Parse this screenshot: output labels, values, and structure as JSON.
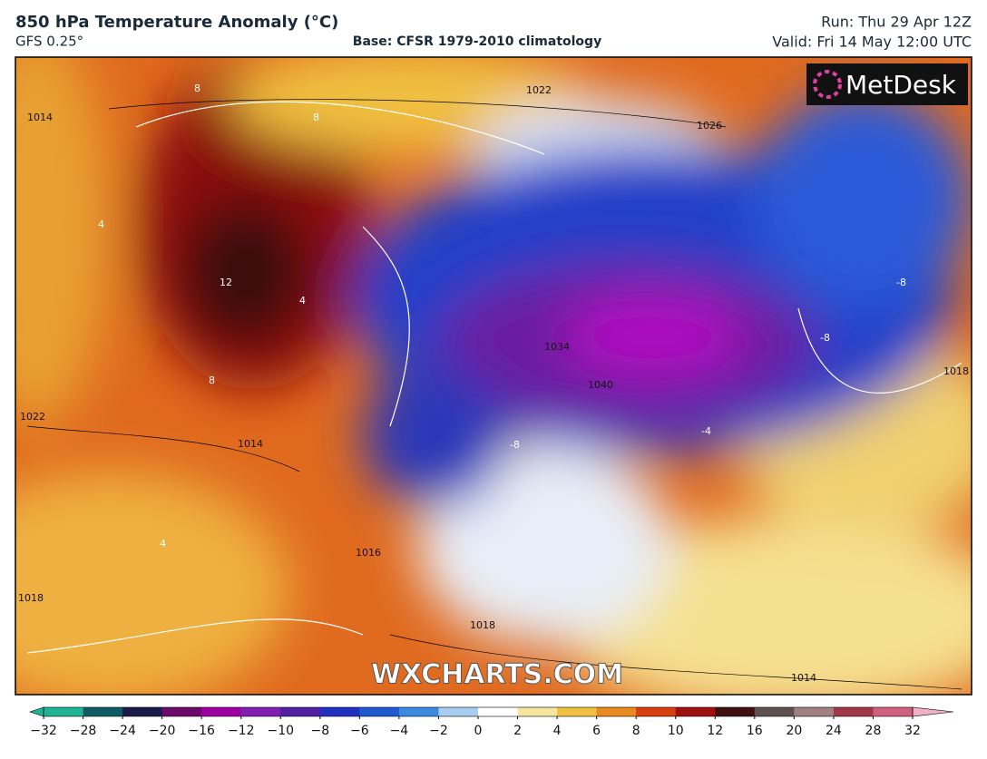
{
  "header": {
    "title": "850 hPa Temperature Anomaly (°C)",
    "model": "GFS 0.25°",
    "base": "Base: CFSR 1979-2010 climatology",
    "run": "Run: Thu 29 Apr 12Z",
    "valid": "Valid: Fri 14 May 12:00 UTC"
  },
  "logo": "MetDesk",
  "watermark": "WXCHARTS.COM",
  "map_labels": [
    "1014",
    "1022",
    "1026",
    "1034",
    "1040",
    "1018",
    "1022",
    "1016",
    "1018",
    "1014",
    "1014",
    "12",
    "8",
    "8",
    "8",
    "4",
    "4",
    "4",
    "-8",
    "-8",
    "-4",
    "-8",
    "1018"
  ],
  "colorbar": {
    "ticks": [
      {
        "value": -32,
        "label": "−32"
      },
      {
        "value": -28,
        "label": "−28"
      },
      {
        "value": -24,
        "label": "−24"
      },
      {
        "value": -20,
        "label": "−20"
      },
      {
        "value": -16,
        "label": "−16"
      },
      {
        "value": -12,
        "label": "−12"
      },
      {
        "value": -10,
        "label": "−10"
      },
      {
        "value": -8,
        "label": "−8"
      },
      {
        "value": -6,
        "label": "−6"
      },
      {
        "value": -4,
        "label": "−4"
      },
      {
        "value": -2,
        "label": "−2"
      },
      0,
      2,
      4,
      6,
      8,
      10,
      12,
      16,
      20,
      24,
      28,
      32
    ],
    "colors": [
      "#1fb594",
      "#0d5c63",
      "#1b1b4a",
      "#6b0a6b",
      "#a000a0",
      "#8020b0",
      "#5020a0",
      "#2030c0",
      "#2058d0",
      "#3a8ae0",
      "#a8cdf0",
      "#ffffff",
      "#f5e6a0",
      "#f0c040",
      "#e88a20",
      "#d84010",
      "#a01010",
      "#401010",
      "#605050",
      "#a08080",
      "#a03848",
      "#d06080",
      "#f0b0c8"
    ]
  }
}
